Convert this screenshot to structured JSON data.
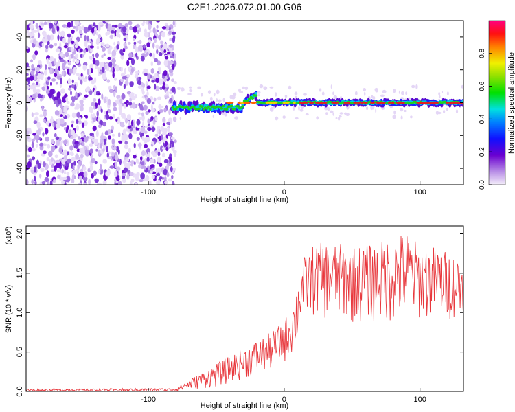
{
  "title": "C2E1.2026.072.01.00.G06",
  "chart_data": [
    {
      "type": "heatmap",
      "xlabel": "Height of straight line (km)",
      "ylabel": "Frequency (Hz)",
      "xlim": [
        -190,
        132
      ],
      "ylim": [
        -50,
        50
      ],
      "xticks": [
        -100,
        0,
        100
      ],
      "yticks": [
        -40,
        -20,
        0,
        20,
        40
      ],
      "description_regions": [
        {
          "x_range": [
            -190,
            -80
          ],
          "kind": "broadband noise",
          "amplitude": 0.15
        },
        {
          "x_range": [
            -80,
            132
          ],
          "kind": "narrow signal band near 0 Hz",
          "amplitude": 0.85
        }
      ],
      "colorbar": {
        "label": "Normalized spectral amplitude",
        "range": [
          0,
          1
        ],
        "ticks": [
          "0.0",
          "0.2",
          "0.4",
          "0.6",
          "0.8"
        ]
      }
    },
    {
      "type": "line",
      "xlabel": "Height of straight line (km)",
      "ylabel": "SNR (10 * v/v)",
      "yscale_label": "(x10",
      "yscale_exp": "4",
      "xlim": [
        -190,
        132
      ],
      "ylim": [
        0,
        2.1
      ],
      "xticks": [
        -100,
        0,
        100
      ],
      "yticks": [
        "0.0",
        "0.5",
        "1.0",
        "1.5",
        "2.0"
      ],
      "series": [
        {
          "name": "SNR",
          "color": "#e8383d",
          "envelope_x": [
            -190,
            -80,
            -70,
            -50,
            -30,
            -10,
            0,
            8,
            12,
            20,
            30,
            50,
            70,
            90,
            100,
            110,
            132
          ],
          "envelope_lo": [
            0.0,
            0.0,
            0.02,
            0.05,
            0.15,
            0.25,
            0.35,
            0.5,
            0.8,
            0.95,
            0.9,
            0.85,
            0.85,
            0.85,
            0.9,
            0.9,
            0.9
          ],
          "envelope_hi": [
            0.03,
            0.04,
            0.15,
            0.35,
            0.55,
            0.75,
            0.9,
            1.2,
            1.65,
            1.85,
            1.9,
            1.85,
            1.9,
            2.05,
            1.85,
            1.85,
            1.7
          ]
        }
      ]
    }
  ]
}
